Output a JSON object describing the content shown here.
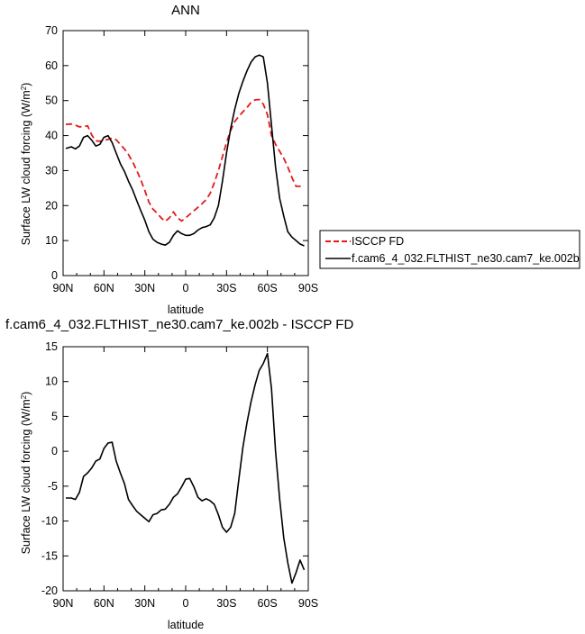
{
  "chart_data": [
    {
      "type": "line",
      "title": "ANN",
      "xlabel": "latitude",
      "ylabel": "Surface LW cloud forcing (W/m²)",
      "ylabel_main": "Surface LW cloud forcing (W/m",
      "ylabel_sup": "2",
      "ylabel_tail": ")",
      "xlim": [
        90,
        -90
      ],
      "ylim": [
        0,
        70
      ],
      "xticks": [
        90,
        60,
        30,
        0,
        -30,
        -60,
        -90
      ],
      "xtick_labels": [
        "90N",
        "60N",
        "30N",
        "0",
        "30S",
        "60S",
        "90S"
      ],
      "yticks": [
        0,
        10,
        20,
        30,
        40,
        50,
        60,
        70
      ],
      "ytick_labels": [
        "0",
        "10",
        "20",
        "30",
        "40",
        "50",
        "60",
        "70"
      ],
      "grid": false,
      "legend_position": "outside-right",
      "series": [
        {
          "name": "ISCCP FD",
          "color": "#e41a1c",
          "dashed": true,
          "x": [
            88,
            84,
            81,
            78,
            75,
            72,
            69,
            66,
            63,
            60,
            57,
            54,
            51,
            48,
            45,
            42,
            39,
            36,
            33,
            30,
            27,
            24,
            21,
            18,
            15,
            12,
            9,
            6,
            3,
            0,
            -3,
            -6,
            -9,
            -12,
            -15,
            -18,
            -21,
            -24,
            -27,
            -30,
            -33,
            -36,
            -39,
            -42,
            -45,
            -48,
            -51,
            -54,
            -57,
            -60,
            -63,
            -66,
            -69,
            -72,
            -75,
            -78,
            -81,
            -84,
            -87
          ],
          "y": [
            43.2,
            43.3,
            43,
            42.5,
            42.6,
            42.8,
            40.2,
            38.5,
            38.4,
            38.6,
            38.9,
            39.3,
            38.8,
            37.5,
            36.2,
            34.6,
            32.5,
            30.1,
            27.4,
            24.3,
            21,
            19,
            17.8,
            16.5,
            15.5,
            16.5,
            18.2,
            16.5,
            15.6,
            16.5,
            17.5,
            18.5,
            19.5,
            20.5,
            21.7,
            23.5,
            26.5,
            30,
            34,
            38,
            41.5,
            44,
            45.5,
            46.8,
            48,
            49.5,
            50.2,
            50.3,
            49,
            46,
            40,
            37.5,
            35.5,
            33.5,
            31,
            28,
            25.5,
            25.5,
            25.5
          ]
        },
        {
          "name": "f.cam6_4_032.FLTHIST_ne30.cam7_ke.002b",
          "color": "#000000",
          "dashed": false,
          "x": [
            88,
            84,
            81,
            78,
            75,
            72,
            69,
            66,
            63,
            60,
            57,
            54,
            51,
            48,
            45,
            42,
            39,
            36,
            33,
            30,
            27,
            24,
            21,
            18,
            15,
            12,
            9,
            6,
            3,
            0,
            -3,
            -6,
            -9,
            -12,
            -15,
            -18,
            -21,
            -24,
            -27,
            -30,
            -33,
            -36,
            -39,
            -42,
            -45,
            -48,
            -51,
            -54,
            -57,
            -60,
            -63,
            -66,
            -69,
            -72,
            -75,
            -78,
            -81,
            -84,
            -87
          ],
          "y": [
            36.3,
            36.8,
            36.2,
            37,
            39.5,
            40,
            38.7,
            37,
            37.5,
            39.5,
            40,
            38,
            35,
            32,
            29.8,
            27,
            24.5,
            21.5,
            18.6,
            15.8,
            12.5,
            10.4,
            9.5,
            9,
            8.7,
            9.5,
            11.5,
            12.8,
            12,
            11.5,
            11.5,
            12,
            13,
            13.7,
            14,
            14.5,
            16.5,
            20,
            27,
            35,
            42,
            47.5,
            52,
            55.5,
            58.5,
            61,
            62.5,
            63,
            62.5,
            55,
            43,
            31,
            22,
            17,
            12.5,
            11,
            10,
            9,
            8.5
          ]
        }
      ]
    },
    {
      "type": "line",
      "title": "f.cam6_4_032.FLTHIST_ne30.cam7_ke.002b - ISCCP FD",
      "xlabel": "latitude",
      "ylabel": "Surface LW cloud forcing (W/m²)",
      "ylabel_main": "Surface LW cloud forcing (W/m",
      "ylabel_sup": "2",
      "ylabel_tail": ")",
      "xlim": [
        90,
        -90
      ],
      "ylim": [
        -20,
        15
      ],
      "xticks": [
        90,
        60,
        30,
        0,
        -30,
        -60,
        -90
      ],
      "xtick_labels": [
        "90N",
        "60N",
        "30N",
        "0",
        "30S",
        "60S",
        "90S"
      ],
      "yticks": [
        -20,
        -15,
        -10,
        -5,
        0,
        5,
        10,
        15
      ],
      "ytick_labels": [
        "-20",
        "-15",
        "-10",
        "-5",
        "0",
        "5",
        "10",
        "15"
      ],
      "grid": false,
      "series": [
        {
          "color": "#000000",
          "dashed": false,
          "x": [
            88,
            84,
            81,
            78,
            75,
            72,
            69,
            66,
            63,
            60,
            57,
            54,
            51,
            48,
            45,
            42,
            39,
            36,
            33,
            30,
            27,
            24,
            21,
            18,
            15,
            12,
            9,
            6,
            3,
            0,
            -3,
            -6,
            -9,
            -12,
            -15,
            -18,
            -21,
            -24,
            -27,
            -30,
            -33,
            -36,
            -39,
            -42,
            -45,
            -48,
            -51,
            -54,
            -57,
            -60,
            -63,
            -66,
            -69,
            -72,
            -75,
            -78,
            -81,
            -84,
            -87
          ],
          "y": [
            -6.7,
            -6.7,
            -6.9,
            -5.9,
            -3.6,
            -3.1,
            -2.4,
            -1.4,
            -1.1,
            0.4,
            1.2,
            1.3,
            -1.4,
            -3.1,
            -4.6,
            -6.9,
            -7.8,
            -8.6,
            -9.1,
            -9.6,
            -10.1,
            -9.1,
            -8.9,
            -8.4,
            -8.3,
            -7.6,
            -6.6,
            -6.1,
            -5.1,
            -4.0,
            -3.9,
            -5.1,
            -6.6,
            -7.1,
            -6.8,
            -7.1,
            -7.6,
            -9.1,
            -10.9,
            -11.6,
            -10.9,
            -8.9,
            -4.1,
            0.6,
            4.1,
            7.1,
            9.6,
            11.6,
            12.6,
            14.0,
            9.0,
            0.0,
            -6.9,
            -12.4,
            -16.0,
            -18.9,
            -17.4,
            -15.6,
            -17.0
          ]
        }
      ]
    }
  ]
}
